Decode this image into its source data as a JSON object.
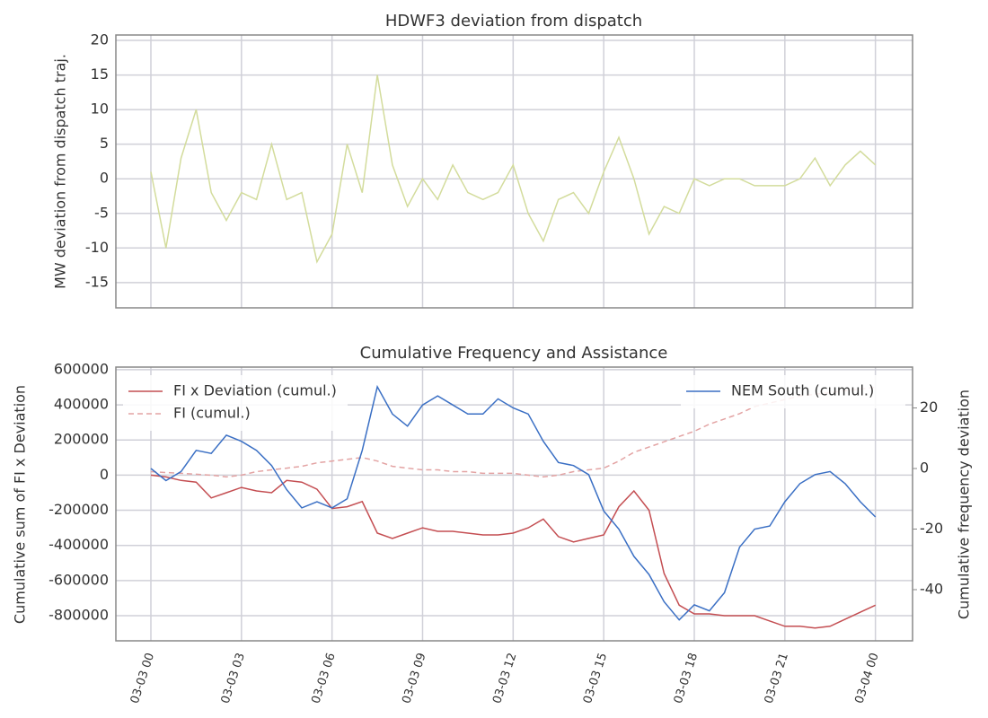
{
  "chart_data": [
    {
      "type": "line",
      "title": "HDWF3 deviation from dispatch",
      "ylabel": "MW deviation from dispatch traj.",
      "x": [
        0,
        0.5,
        1,
        1.5,
        2,
        2.5,
        3,
        3.5,
        4,
        4.5,
        5,
        5.5,
        6,
        6.5,
        7,
        7.5,
        8,
        8.5,
        9,
        9.5,
        10,
        10.5,
        11,
        11.5,
        12,
        12.5,
        13,
        13.5,
        14,
        14.5,
        15,
        15.5,
        16,
        16.5,
        17,
        17.5,
        18,
        18.5,
        19,
        19.5,
        20,
        20.5,
        21,
        21.5,
        22,
        22.5,
        23,
        23.5,
        24
      ],
      "series": [
        {
          "color": "#d3dc9c",
          "values": [
            1,
            -10,
            3,
            10,
            -2,
            -6,
            -2,
            -3,
            5,
            -3,
            -2,
            -12,
            -8,
            5,
            -2,
            15,
            2,
            -4,
            0,
            -3,
            2,
            -2,
            -3,
            -2,
            2,
            -5,
            -9,
            -3,
            -2,
            -5,
            1,
            6,
            0,
            -8,
            -4,
            -5,
            0,
            -1,
            0,
            0,
            -1,
            -1,
            -1,
            0,
            3,
            -1,
            2,
            4,
            2
          ]
        }
      ],
      "xlim": [
        -1.16,
        25.23
      ],
      "ylim": [
        -18.65,
        20.78
      ],
      "yticks": [
        -15,
        -10,
        -5,
        0,
        5,
        10,
        15,
        20
      ],
      "grid": true
    },
    {
      "type": "line",
      "title": "Cumulative Frequency and Assistance",
      "ylabel": "Cumulative sum of FI x Deviation",
      "y2label": "Cumulative frequency deviation",
      "x": [
        0,
        0.5,
        1,
        1.5,
        2,
        2.5,
        3,
        3.5,
        4,
        4.5,
        5,
        5.5,
        6,
        6.5,
        7,
        7.5,
        8,
        8.5,
        9,
        9.5,
        10,
        10.5,
        11,
        11.5,
        12,
        12.5,
        13,
        13.5,
        14,
        14.5,
        15,
        15.5,
        16,
        16.5,
        17,
        17.5,
        18,
        18.5,
        19,
        19.5,
        20,
        20.5,
        21,
        21.5,
        22,
        22.5,
        23,
        23.5,
        24
      ],
      "series": [
        {
          "name": "FI x Deviation (cumul.)",
          "color": "#c44e52",
          "linestyle": "solid",
          "axis": "y",
          "values": [
            0,
            -10000,
            -30000,
            -40000,
            -130000,
            -100000,
            -70000,
            -90000,
            -100000,
            -30000,
            -40000,
            -80000,
            -190000,
            -180000,
            -150000,
            -330000,
            -360000,
            -330000,
            -300000,
            -320000,
            -320000,
            -330000,
            -340000,
            -340000,
            -330000,
            -300000,
            -250000,
            -350000,
            -380000,
            -360000,
            -340000,
            -180000,
            -90000,
            -200000,
            -560000,
            -740000,
            -790000,
            -790000,
            -800000,
            -800000,
            -800000,
            -830000,
            -860000,
            -860000,
            -870000,
            -860000,
            -820000,
            -780000,
            -740000
          ]
        },
        {
          "name": "FI (cumul.)",
          "color": "#e3a3a3",
          "linestyle": "dashed",
          "axis": "y",
          "values": [
            20000,
            15000,
            10000,
            5000,
            0,
            -10000,
            0,
            20000,
            30000,
            40000,
            50000,
            70000,
            80000,
            90000,
            100000,
            80000,
            50000,
            40000,
            30000,
            30000,
            20000,
            20000,
            10000,
            10000,
            10000,
            0,
            -10000,
            0,
            20000,
            30000,
            40000,
            80000,
            130000,
            160000,
            190000,
            220000,
            250000,
            290000,
            320000,
            350000,
            390000,
            410000,
            430000,
            450000,
            460000,
            470000,
            480000,
            490000,
            500000
          ]
        },
        {
          "name": "NEM South (cumul.)",
          "color": "#3a6fc4",
          "linestyle": "solid",
          "axis": "y2",
          "values": [
            0,
            -4,
            -1,
            6,
            5,
            11,
            9,
            6,
            1,
            -7,
            -13,
            -11,
            -13,
            -10,
            6,
            27,
            18,
            14,
            21,
            24,
            21,
            18,
            18,
            23,
            20,
            18,
            9,
            2,
            1,
            -2,
            -14,
            -20,
            -29,
            -35,
            -44,
            -50,
            -45,
            -47,
            -41,
            -26,
            -20,
            -19,
            -11,
            -5,
            -2,
            -1,
            -5,
            -11,
            -16
          ]
        }
      ],
      "xlim": [
        -1.16,
        25.23
      ],
      "xticks": [
        {
          "value": 0,
          "label": "03-03 00"
        },
        {
          "value": 3,
          "label": "03-03 03"
        },
        {
          "value": 6,
          "label": "03-03 06"
        },
        {
          "value": 9,
          "label": "03-03 09"
        },
        {
          "value": 12,
          "label": "03-03 12"
        },
        {
          "value": 15,
          "label": "03-03 15"
        },
        {
          "value": 18,
          "label": "03-03 18"
        },
        {
          "value": 21,
          "label": "03-03 21"
        },
        {
          "value": 24,
          "label": "03-04 00"
        }
      ],
      "ylim": [
        -943000,
        615000
      ],
      "yticks": [
        -800000,
        -600000,
        -400000,
        -200000,
        0,
        200000,
        400000,
        600000
      ],
      "y2lim": [
        -56.9,
        33.5
      ],
      "y2ticks": [
        -40,
        -20,
        0,
        20
      ],
      "legend": "upper left",
      "legend_y2": "upper right",
      "grid": true
    }
  ]
}
